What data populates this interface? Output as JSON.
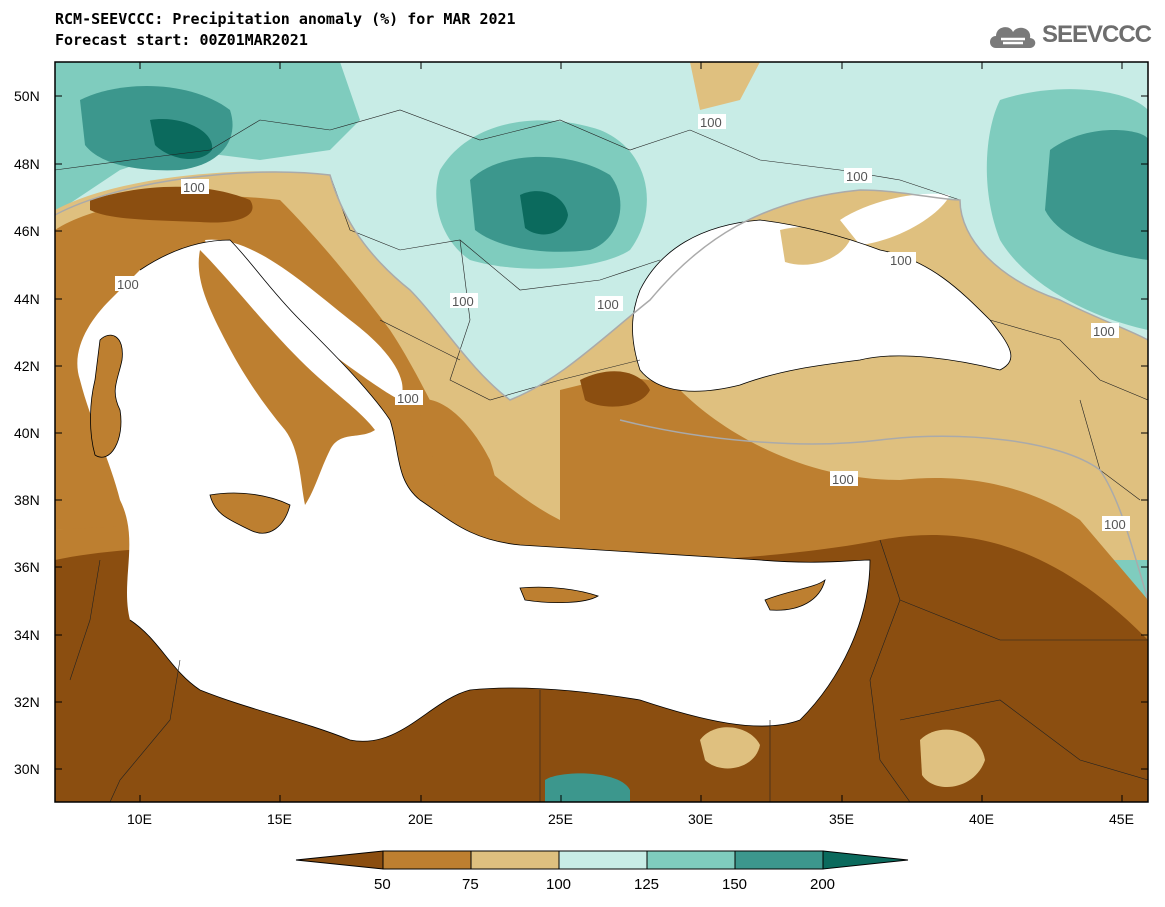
{
  "title": {
    "line1": "RCM-SEEVCCC: Precipitation anomaly (%) for MAR 2021",
    "line2": "Forecast start: 00Z01MAR2021"
  },
  "logo": {
    "text": "SEEVCCC",
    "icon": "cloud-logo-icon"
  },
  "map": {
    "lat_labels": [
      "50N",
      "48N",
      "46N",
      "44N",
      "42N",
      "40N",
      "38N",
      "36N",
      "34N",
      "32N",
      "30N"
    ],
    "lon_labels": [
      "10E",
      "15E",
      "20E",
      "25E",
      "30E",
      "35E",
      "40E",
      "45E"
    ],
    "contour_labels": [
      "100",
      "100",
      "100",
      "100",
      "100",
      "100",
      "100",
      "100",
      "100",
      "100",
      "100"
    ]
  },
  "colorbar": {
    "labels": [
      "50",
      "75",
      "100",
      "125",
      "150",
      "200"
    ],
    "colors": [
      "#8b4e10",
      "#bd7f30",
      "#dfc07f",
      "#c8ece6",
      "#7fccbe",
      "#3c978d",
      "#0b6a5d"
    ]
  }
}
